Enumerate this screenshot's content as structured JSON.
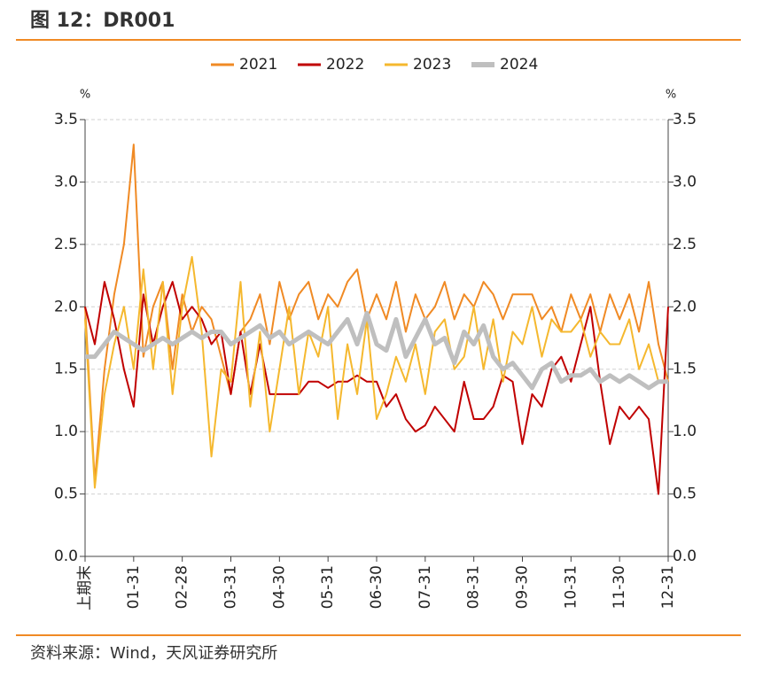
{
  "chart_data": {
    "type": "line",
    "title": "图 12：DR001",
    "ylabel": "%",
    "y2label": "%",
    "source": "资料来源：Wind，天风证券研究所",
    "categories": [
      "上期末",
      null,
      null,
      null,
      null,
      "01-31",
      null,
      null,
      null,
      null,
      "02-28",
      null,
      null,
      null,
      null,
      "03-31",
      null,
      null,
      null,
      null,
      "04-30",
      null,
      null,
      null,
      null,
      "05-31",
      null,
      null,
      null,
      null,
      "06-30",
      null,
      null,
      null,
      null,
      "07-31",
      null,
      null,
      null,
      null,
      "08-31",
      null,
      null,
      null,
      null,
      "09-30",
      null,
      null,
      null,
      null,
      "10-31",
      null,
      null,
      null,
      null,
      "11-30",
      null,
      null,
      null,
      null,
      "12-31"
    ],
    "ylim": [
      0,
      3.5
    ],
    "yticks": [
      {
        "value": 0,
        "label": "0.0"
      },
      0.5,
      {
        "value": 1,
        "label": "1.0"
      },
      1.5,
      {
        "value": 2,
        "label": "2.0"
      },
      2.5,
      {
        "value": 3,
        "label": "3.0"
      },
      3.5
    ],
    "y2lim": [
      0,
      3.5
    ],
    "y2ticks": [
      {
        "value": 0,
        "label": "0.0"
      },
      0.5,
      {
        "value": 1,
        "label": "1.0"
      },
      1.5,
      {
        "value": 2,
        "label": "2.0"
      },
      2.5,
      {
        "value": 3,
        "label": "3.0"
      },
      3.5
    ],
    "grid": true,
    "legend": "top",
    "series": [
      {
        "name": "2021",
        "color": "#f08a24",
        "width": 2,
        "values": [
          2.0,
          0.6,
          1.5,
          2.1,
          2.5,
          3.3,
          1.6,
          2.0,
          2.2,
          1.5,
          2.1,
          1.8,
          2.0,
          1.9,
          1.6,
          1.3,
          1.8,
          1.9,
          2.1,
          1.7,
          2.2,
          1.9,
          2.1,
          2.2,
          1.9,
          2.1,
          2.0,
          2.2,
          2.3,
          1.9,
          2.1,
          1.9,
          2.2,
          1.8,
          2.1,
          1.9,
          2.0,
          2.2,
          1.9,
          2.1,
          2.0,
          2.2,
          2.1,
          1.9,
          2.1,
          2.1,
          2.1,
          1.9,
          2.0,
          1.8,
          2.1,
          1.9,
          2.1,
          1.8,
          2.1,
          1.9,
          2.1,
          1.8,
          2.2,
          1.7,
          1.4
        ]
      },
      {
        "name": "2022",
        "color": "#c00000",
        "width": 2,
        "values": [
          2.0,
          1.7,
          2.2,
          1.9,
          1.5,
          1.2,
          2.1,
          1.7,
          2.0,
          2.2,
          1.9,
          2.0,
          1.9,
          1.7,
          1.8,
          1.3,
          1.8,
          1.3,
          1.7,
          1.3,
          1.3,
          1.3,
          1.3,
          1.4,
          1.4,
          1.35,
          1.4,
          1.4,
          1.45,
          1.4,
          1.4,
          1.2,
          1.3,
          1.1,
          1.0,
          1.05,
          1.2,
          1.1,
          1.0,
          1.4,
          1.1,
          1.1,
          1.2,
          1.45,
          1.4,
          0.9,
          1.3,
          1.2,
          1.5,
          1.6,
          1.4,
          1.7,
          2.0,
          1.4,
          0.9,
          1.2,
          1.1,
          1.2,
          1.1,
          0.5,
          2.0
        ]
      },
      {
        "name": "2023",
        "color": "#f5b82e",
        "width": 2,
        "values": [
          1.9,
          0.55,
          1.3,
          1.7,
          2.0,
          1.5,
          2.3,
          1.5,
          2.2,
          1.3,
          2.0,
          2.4,
          1.8,
          0.8,
          1.5,
          1.4,
          2.2,
          1.2,
          1.8,
          1.0,
          1.5,
          2.0,
          1.3,
          1.8,
          1.6,
          2.0,
          1.1,
          1.7,
          1.3,
          1.9,
          1.1,
          1.3,
          1.6,
          1.4,
          1.7,
          1.3,
          1.8,
          1.9,
          1.5,
          1.6,
          2.0,
          1.5,
          1.9,
          1.4,
          1.8,
          1.7,
          2.0,
          1.6,
          1.9,
          1.8,
          1.8,
          1.9,
          1.6,
          1.8,
          1.7,
          1.7,
          1.9,
          1.5,
          1.7,
          1.4,
          1.4
        ]
      },
      {
        "name": "2024",
        "color": "#bfbfbf",
        "width": 5,
        "values": [
          1.6,
          1.6,
          1.7,
          1.8,
          1.75,
          1.7,
          1.65,
          1.7,
          1.75,
          1.7,
          1.75,
          1.8,
          1.75,
          1.8,
          1.8,
          1.7,
          1.75,
          1.8,
          1.85,
          1.75,
          1.8,
          1.7,
          1.75,
          1.8,
          1.75,
          1.7,
          1.8,
          1.9,
          1.7,
          1.95,
          1.7,
          1.65,
          1.9,
          1.6,
          1.75,
          1.9,
          1.7,
          1.75,
          1.55,
          1.8,
          1.7,
          1.85,
          1.6,
          1.5,
          1.55,
          1.45,
          1.35,
          1.5,
          1.55,
          1.4,
          1.45,
          1.45,
          1.5,
          1.4,
          1.45,
          1.4,
          1.45,
          1.4,
          1.35,
          1.4,
          1.4
        ]
      }
    ]
  }
}
